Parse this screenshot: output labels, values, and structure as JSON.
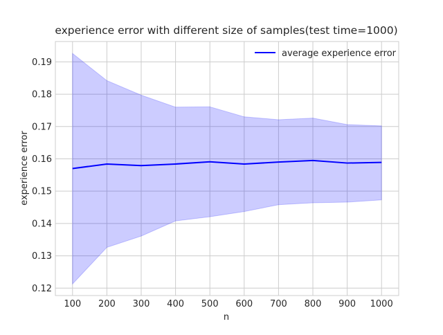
{
  "chart_data": {
    "type": "line",
    "title": "experience error with different size of samples(test time=1000)",
    "xlabel": "n",
    "ylabel": "experience error",
    "x": [
      100,
      200,
      300,
      400,
      500,
      600,
      700,
      800,
      900,
      1000
    ],
    "series": [
      {
        "name": "average experience error",
        "color": "#0000ff",
        "values": [
          0.157,
          0.1584,
          0.1579,
          0.1584,
          0.1591,
          0.1584,
          0.159,
          0.1595,
          0.1587,
          0.1589
        ]
      }
    ],
    "band": {
      "color": "#0000ff",
      "opacity": 0.2,
      "upper": [
        0.1926,
        0.1842,
        0.1797,
        0.176,
        0.1761,
        0.173,
        0.1721,
        0.1726,
        0.1706,
        0.1702
      ],
      "lower": [
        0.1213,
        0.1326,
        0.1361,
        0.1408,
        0.1421,
        0.1437,
        0.1458,
        0.1464,
        0.1466,
        0.1473
      ]
    },
    "xlim": [
      50,
      1050
    ],
    "ylim": [
      0.1177,
      0.1963
    ],
    "xticks": [
      100,
      200,
      300,
      400,
      500,
      600,
      700,
      800,
      900,
      1000
    ],
    "yticks": [
      0.12,
      0.13,
      0.14,
      0.15,
      0.16,
      0.17,
      0.18,
      0.19
    ],
    "grid": true,
    "legend_position": "top-right"
  }
}
